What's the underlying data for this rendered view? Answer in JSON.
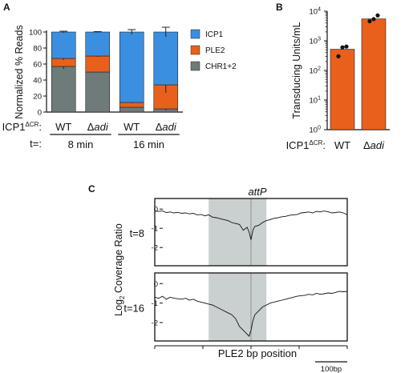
{
  "panels": {
    "a": "A",
    "b": "B",
    "c": "C"
  },
  "colors": {
    "ICP1": "#3b8fe0",
    "PLE2": "#e8601c",
    "CHR1+2": "#6f7b7b",
    "shade": "#c9d0cf",
    "coverage": "#111111"
  },
  "chart_data": [
    {
      "type": "bar",
      "stacked": true,
      "ylabel": "Normalized % Reads",
      "ylim": [
        0,
        100
      ],
      "yticks": [
        0,
        20,
        40,
        60,
        80,
        100
      ],
      "row_label": {
        "prefix": "ICP1",
        "superscript": "ΔCR",
        "suffix": ":"
      },
      "time_label": "t=:",
      "categories": [
        {
          "genotype": "WT",
          "italic": false
        },
        {
          "genotype": "Δ",
          "genotype_italic": "adi",
          "italic": true
        },
        {
          "genotype": "WT",
          "italic": false
        },
        {
          "genotype": "Δ",
          "genotype_italic": "adi",
          "italic": true
        }
      ],
      "time_groups": [
        {
          "label": "8 min",
          "bars": [
            0,
            1
          ]
        },
        {
          "label": "16 min",
          "bars": [
            2,
            3
          ]
        }
      ],
      "series": [
        {
          "name": "CHR1+2",
          "values": [
            57,
            50,
            6,
            4
          ],
          "errors": [
            3,
            0,
            0.5,
            2
          ]
        },
        {
          "name": "PLE2",
          "values": [
            10,
            20,
            6,
            30
          ],
          "errors": [
            2,
            1,
            1,
            10
          ]
        },
        {
          "name": "ICP1",
          "values": [
            33,
            30,
            88,
            66
          ],
          "errors": [
            1,
            0.5,
            3,
            6
          ]
        }
      ],
      "legend": {
        "placement": "right",
        "order": [
          "ICP1",
          "PLE2",
          "CHR1+2"
        ]
      }
    },
    {
      "type": "bar",
      "ylabel": "Transducing Units/mL",
      "yscale": "log",
      "ylim": [
        1,
        10000
      ],
      "yticks": [
        {
          "base": "10",
          "exp": "0"
        },
        {
          "base": "10",
          "exp": "1"
        },
        {
          "base": "10",
          "exp": "2"
        },
        {
          "base": "10",
          "exp": "3"
        },
        {
          "base": "10",
          "exp": "4"
        }
      ],
      "row_label": {
        "prefix": "ICP1",
        "superscript": "ΔCR",
        "suffix": ":"
      },
      "categories": [
        {
          "genotype": "WT",
          "italic": false
        },
        {
          "genotype": "Δ",
          "genotype_italic": "adi",
          "italic": true
        }
      ],
      "values": [
        520,
        5500
      ],
      "points": [
        [
          300,
          600,
          640
        ],
        [
          4600,
          5400,
          7200
        ]
      ]
    },
    {
      "type": "line",
      "title": "attP",
      "ylabel": "Log",
      "ylabel_sub": "2",
      "ylabel_rest": " Coverage Ratio",
      "xlabel": "PLE2 bp position",
      "scalebar": "100bp",
      "yticks": [
        0,
        -1,
        -2
      ],
      "ylim": [
        -2.7,
        0.3
      ],
      "xlim": [
        0,
        100
      ],
      "shaded_region": [
        28,
        58
      ],
      "center_line": 50,
      "series": [
        {
          "name": "t=8",
          "x": [
            0,
            2,
            4,
            6,
            8,
            10,
            12,
            14,
            16,
            18,
            20,
            22,
            24,
            26,
            28,
            30,
            32,
            34,
            36,
            38,
            40,
            42,
            44,
            46,
            48,
            49,
            50,
            51,
            52,
            54,
            56,
            58,
            60,
            62,
            64,
            66,
            68,
            70,
            72,
            74,
            76,
            78,
            80,
            82,
            84,
            86,
            88,
            90,
            92,
            94,
            96,
            98,
            100
          ],
          "y": [
            -0.1,
            -0.12,
            -0.1,
            -0.18,
            -0.15,
            -0.2,
            -0.17,
            -0.22,
            -0.2,
            -0.25,
            -0.22,
            -0.3,
            -0.28,
            -0.35,
            -0.3,
            -0.42,
            -0.45,
            -0.5,
            -0.55,
            -0.6,
            -0.7,
            -0.75,
            -0.8,
            -1.1,
            -0.95,
            -1.2,
            -1.6,
            -1.1,
            -0.9,
            -0.85,
            -0.7,
            -0.6,
            -0.55,
            -0.48,
            -0.45,
            -0.4,
            -0.38,
            -0.32,
            -0.3,
            -0.28,
            -0.2,
            -0.18,
            -0.15,
            -0.2,
            -0.12,
            -0.15,
            -0.1,
            -0.14,
            -0.2,
            -0.18,
            -0.15,
            -0.2,
            -0.3
          ]
        },
        {
          "name": "t=16",
          "x": [
            0,
            2,
            4,
            6,
            8,
            10,
            12,
            14,
            16,
            18,
            20,
            22,
            24,
            26,
            28,
            30,
            32,
            34,
            36,
            38,
            40,
            42,
            44,
            46,
            48,
            49,
            50,
            51,
            52,
            54,
            56,
            58,
            60,
            62,
            64,
            66,
            68,
            70,
            72,
            74,
            76,
            78,
            80,
            82,
            84,
            86,
            88,
            90,
            92,
            94,
            96,
            98,
            100
          ],
          "y": [
            -0.7,
            -0.75,
            -0.65,
            -0.8,
            -0.7,
            -0.75,
            -0.78,
            -0.8,
            -0.75,
            -0.85,
            -0.8,
            -0.9,
            -0.95,
            -1.0,
            -1.05,
            -1.1,
            -1.2,
            -1.3,
            -1.4,
            -1.5,
            -1.6,
            -1.8,
            -2.2,
            -2.4,
            -2.6,
            -2.7,
            -2.4,
            -1.9,
            -1.6,
            -1.4,
            -1.2,
            -1.1,
            -1.0,
            -0.95,
            -0.9,
            -0.85,
            -0.8,
            -0.75,
            -0.7,
            -0.65,
            -0.62,
            -0.6,
            -0.55,
            -0.58,
            -0.5,
            -0.55,
            -0.52,
            -0.48,
            -0.5,
            -0.45,
            -0.4,
            -0.42,
            -0.4
          ]
        }
      ]
    }
  ]
}
